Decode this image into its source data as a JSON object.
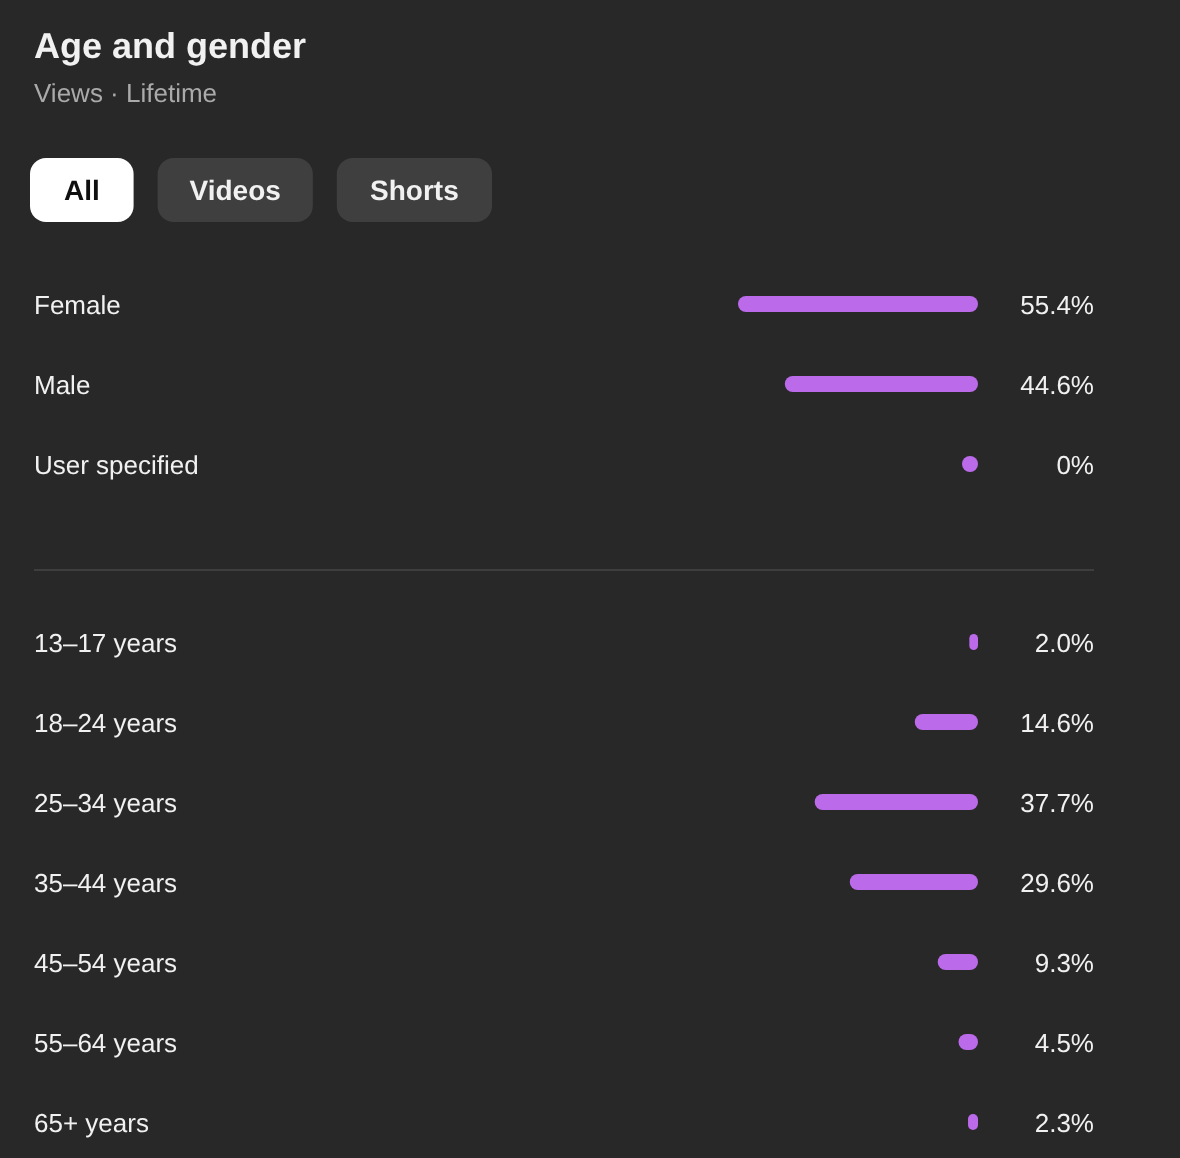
{
  "chart_data": [
    {
      "type": "bar",
      "orientation": "horizontal",
      "title": "Age and gender",
      "subtitle": "Views · Lifetime",
      "annotations": [
        "All",
        "Videos",
        "Shorts"
      ],
      "categories": [
        "Female",
        "Male",
        "User specified"
      ],
      "values": [
        55.4,
        44.6,
        0
      ],
      "color": "#bb6bea",
      "data_labels": true,
      "value_labels": [
        "55.4%",
        "44.6%",
        "0%"
      ]
    },
    {
      "type": "bar",
      "orientation": "horizontal",
      "categories": [
        "13–17 years",
        "18–24 years",
        "25–34 years",
        "35–44 years",
        "45–54 years",
        "55–64 years",
        "65+ years"
      ],
      "values": [
        2.0,
        14.6,
        37.7,
        29.6,
        9.3,
        4.5,
        2.3
      ],
      "color": "#bb6bea",
      "data_labels": true,
      "value_labels": [
        "2.0%",
        "14.6%",
        "37.7%",
        "29.6%",
        "9.3%",
        "4.5%",
        "2.3%"
      ]
    }
  ]
}
